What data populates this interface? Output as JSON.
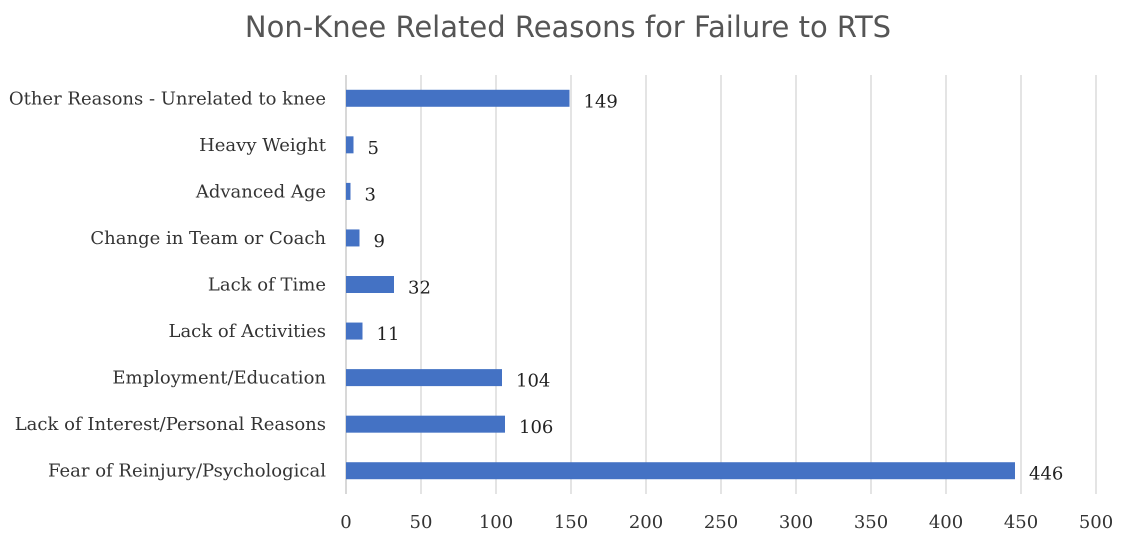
{
  "chart_data": {
    "type": "bar",
    "orientation": "horizontal",
    "title": "Non-Knee Related Reasons for Failure to RTS",
    "categories": [
      "Other Reasons - Unrelated to knee",
      "Heavy Weight",
      "Advanced Age",
      "Change in Team or Coach",
      "Lack of Time",
      "Lack of Activities",
      "Employment/Education",
      "Lack of Interest/Personal Reasons",
      "Fear of Reinjury/Psychological"
    ],
    "values": [
      149,
      5,
      3,
      9,
      32,
      11,
      104,
      106,
      446
    ],
    "data_labels": [
      "149",
      "5",
      "3",
      "9",
      "32",
      "11",
      "104",
      "106",
      "446"
    ],
    "xlim": [
      0,
      500
    ],
    "x_ticks": [
      0,
      50,
      100,
      150,
      200,
      250,
      300,
      350,
      400,
      450,
      500
    ],
    "x_tick_labels": [
      "0",
      "50",
      "100",
      "150",
      "200",
      "250",
      "300",
      "350",
      "400",
      "450",
      "500"
    ],
    "xlabel": "",
    "ylabel": "",
    "grid": "vertical",
    "legend": "none",
    "bar_color": "#4472C4",
    "grid_color": "#d3d3d3"
  }
}
